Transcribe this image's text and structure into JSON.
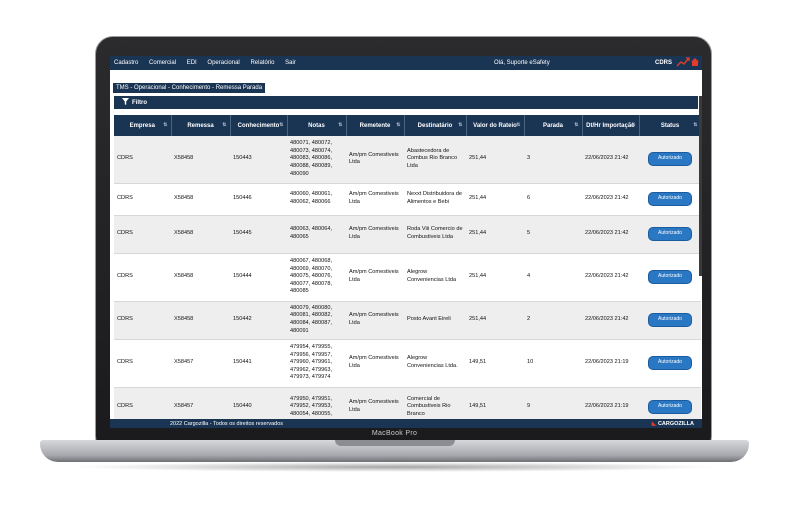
{
  "device": {
    "model": "MacBook Pro"
  },
  "menu": [
    "Cadastro",
    "Comercial",
    "EDI",
    "Operacional",
    "Relatório",
    "Sair"
  ],
  "header": {
    "welcome": "Olá, Suporte eSafety",
    "company": "CDRS"
  },
  "breadcrumb": "TMS - Operacional - Conhecimento - Remessa Parada",
  "filter": {
    "label": "Filtro"
  },
  "table": {
    "columns": [
      "Empresa",
      "Remessa",
      "Conhecimento",
      "Notas",
      "Remetente",
      "Destinatário",
      "Valor do Rateio",
      "Parada",
      "Dt/Hr Importação",
      "Status"
    ],
    "rows": [
      [
        "CDRS",
        "X58458",
        "150443",
        "480071, 480072, 480073, 480074, 480083, 480086, 480088, 480089, 480090",
        "Am/pm Comestiveis Ltda",
        "Abastecedora de Combus Rio Branco Ltda",
        "251,44",
        "3",
        "22/06/2023 21:42",
        "Autorizado"
      ],
      [
        "CDRS",
        "X58458",
        "150446",
        "480060, 480061, 480062, 480066",
        "Am/pm Comestiveis Ltda",
        "Nexxt Distribuidora de Alimentos e Bebi",
        "251,44",
        "6",
        "22/06/2023 21:42",
        "Autorizado"
      ],
      [
        "CDRS",
        "X58458",
        "150445",
        "480063, 480064, 480065",
        "Am/pm Comestiveis Ltda",
        "Roda Viii Comercio de Combustiveis Ltda",
        "251,44",
        "5",
        "22/06/2023 21:42",
        "Autorizado"
      ],
      [
        "CDRS",
        "X58458",
        "150444",
        "480067, 480068, 480069, 480070, 480075, 480076, 480077, 480078, 480085",
        "Am/pm Comestiveis Ltda",
        "Alegrow Conveniencias Ltda",
        "251,44",
        "4",
        "22/06/2023 21:42",
        "Autorizado"
      ],
      [
        "CDRS",
        "X58458",
        "150442",
        "480079, 480080, 480081, 480082, 480084, 480087, 480091",
        "Am/pm Comestiveis Ltda",
        "Posto Avant Eireli",
        "251,44",
        "2",
        "22/06/2023 21:42",
        "Autorizado"
      ],
      [
        "CDRS",
        "X58457",
        "150441",
        "479954, 479955, 479956, 479957, 479960, 479961, 479962, 479963, 479973, 479974",
        "Am/pm Comestiveis Ltda",
        "Alegrow Conveniencias Ltda.",
        "149,51",
        "10",
        "22/06/2023 21:19",
        "Autorizado"
      ],
      [
        "CDRS",
        "X58457",
        "150440",
        "479950, 479951, 479952, 479953, 480054, 480055,",
        "Am/pm Comestiveis Ltda",
        "Comercial de Combustiveis Rio Branco",
        "149,51",
        "9",
        "22/06/2023 21:19",
        "Autorizado"
      ]
    ]
  },
  "footer": {
    "copyright": "2022 Cargozilla - Todos os direitos reservados",
    "brand": "CARGOZILLA"
  },
  "colors": {
    "navy": "#1a3554",
    "status_button": "#2a77c4",
    "accent_red": "#e23d2b"
  },
  "icons": [
    "filter-icon",
    "chart-icon",
    "home-icon",
    "sort-icon"
  ]
}
